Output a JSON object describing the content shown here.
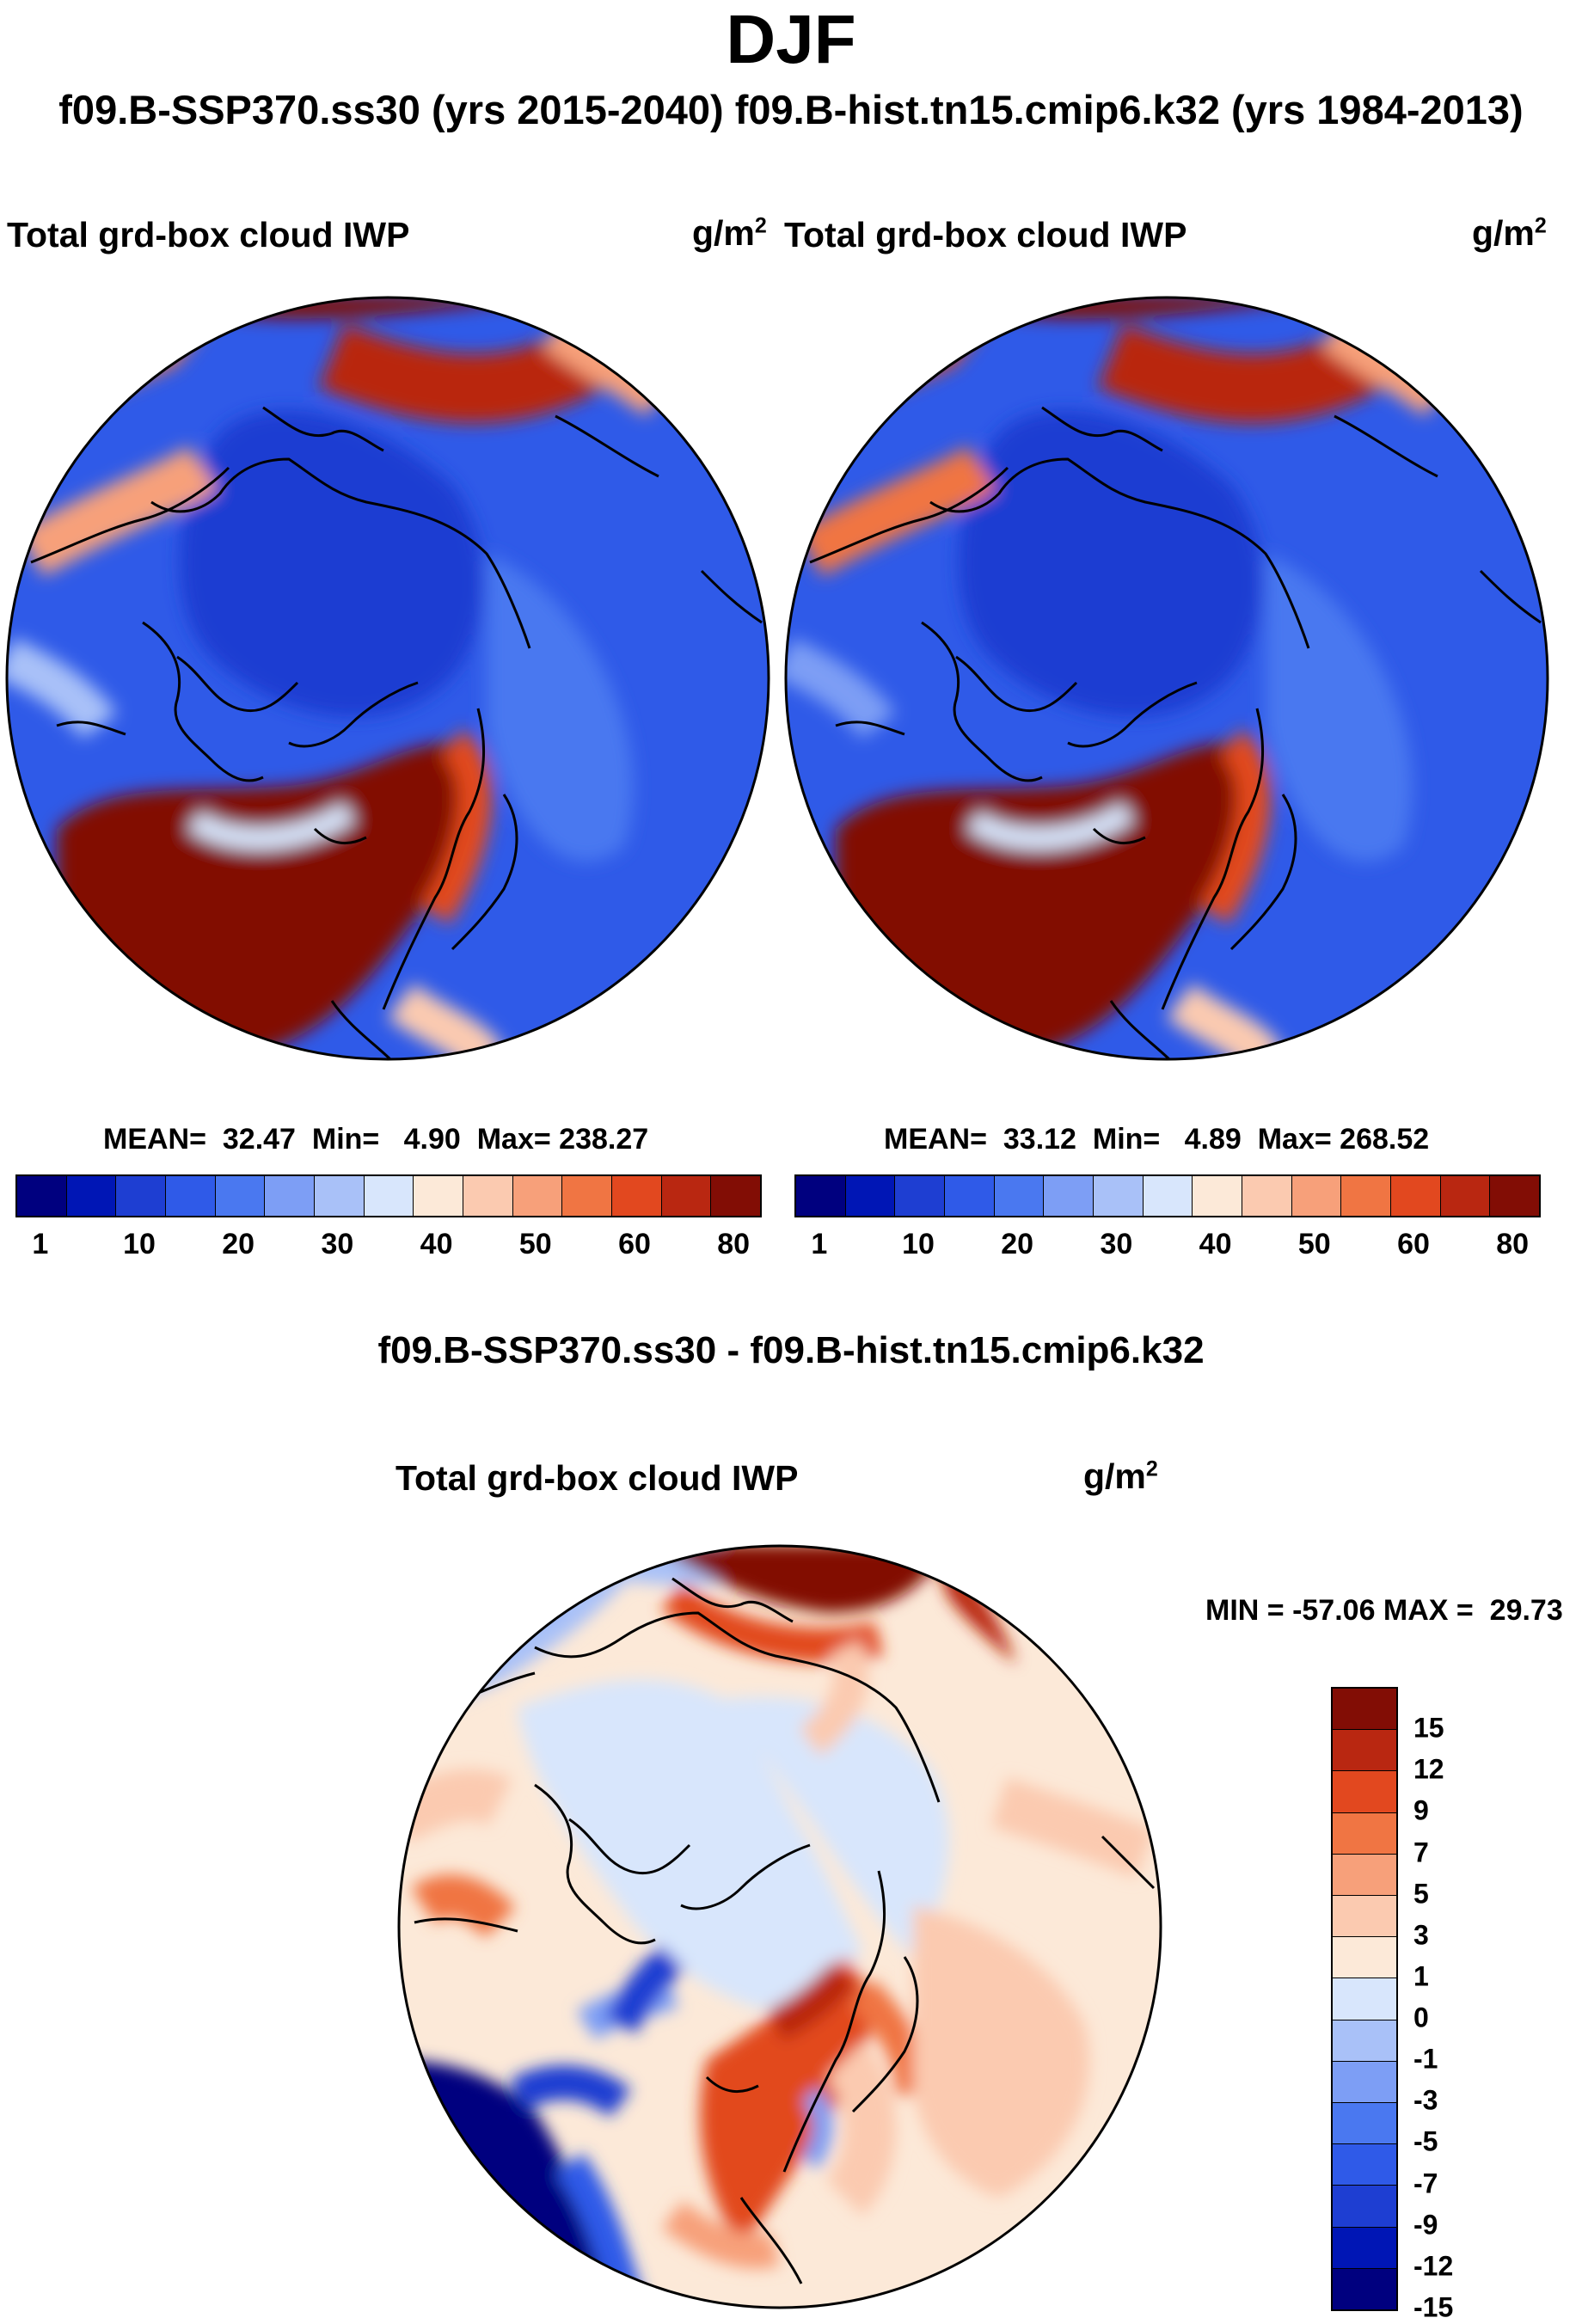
{
  "header": {
    "title": "DJF",
    "subtitle": "f09.B-SSP370.ss30 (yrs 2015-2040)  f09.B-hist.tn15.cmip6.k32 (yrs 1984-2013)"
  },
  "colors": {
    "seq": [
      "#00007f",
      "#0016b5",
      "#1e3ed2",
      "#2f5ae8",
      "#4a78f0",
      "#7d9ef5",
      "#a9c1f8",
      "#d8e6fc",
      "#fce9d8",
      "#fbcab0",
      "#f7a07a",
      "#f07543",
      "#e2481f",
      "#b92711",
      "#820d05"
    ],
    "diff": [
      "#00007f",
      "#0016b5",
      "#1e3ed2",
      "#2f5ae8",
      "#4a78f0",
      "#7d9ef5",
      "#a9c1f8",
      "#d8e6fc",
      "#fce9d8",
      "#fbcab0",
      "#f7a07a",
      "#f07543",
      "#e2481f",
      "#b92711",
      "#820d05"
    ]
  },
  "panels": [
    {
      "title": "Total grd-box cloud IWP",
      "units": "g/m",
      "units_exp": "2",
      "mean_label": "MEAN=",
      "mean": "32.47",
      "min_label": "Min=",
      "min": "4.90",
      "max_label": "Max=",
      "max": "238.27",
      "ticks": [
        "1",
        "10",
        "20",
        "30",
        "40",
        "50",
        "60",
        "80"
      ]
    },
    {
      "title": "Total grd-box cloud IWP",
      "units": "g/m",
      "units_exp": "2",
      "mean_label": "MEAN=",
      "mean": "33.12",
      "min_label": "Min=",
      "min": "4.89",
      "max_label": "Max=",
      "max": "268.52",
      "ticks": [
        "1",
        "10",
        "20",
        "30",
        "40",
        "50",
        "60",
        "80"
      ]
    }
  ],
  "difference": {
    "heading": "f09.B-SSP370.ss30 - f09.B-hist.tn15.cmip6.k32",
    "title": "Total grd-box cloud IWP",
    "units": "g/m",
    "units_exp": "2",
    "minmax": "MIN = -57.06 MAX =  29.73",
    "ticks": [
      "15",
      "12",
      "9",
      "7",
      "5",
      "3",
      "1",
      "0",
      "-1",
      "-3",
      "-5",
      "-7",
      "-9",
      "-12",
      "-15"
    ]
  }
}
